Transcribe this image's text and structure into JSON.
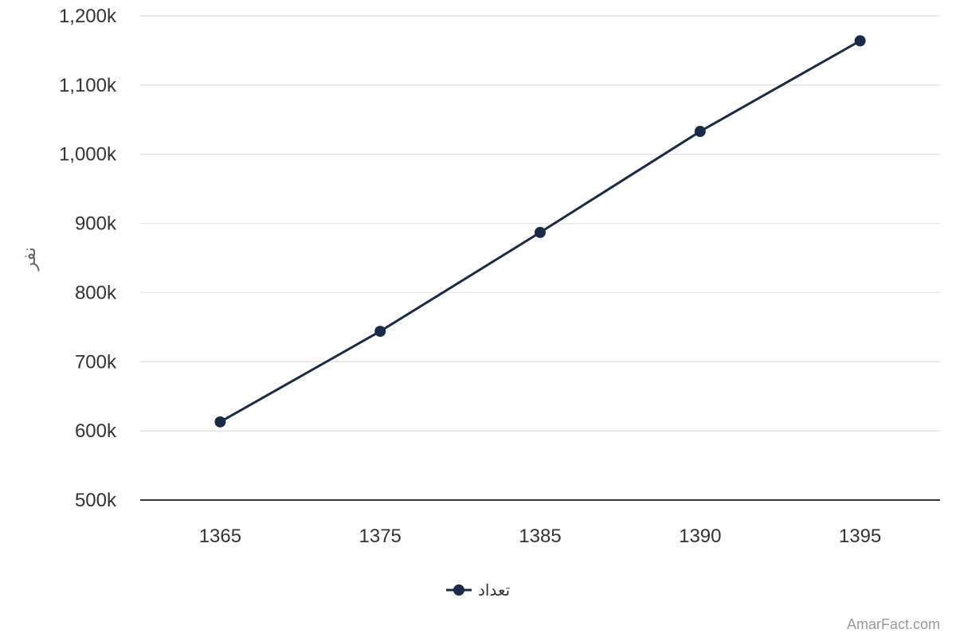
{
  "chart_data": {
    "type": "line",
    "title": "",
    "xlabel": "",
    "ylabel": "نفر",
    "categories": [
      "1365",
      "1375",
      "1385",
      "1390",
      "1395"
    ],
    "series": [
      {
        "name": "تعداد",
        "color": "#1c2a4a",
        "values": [
          613000,
          744000,
          887000,
          1033000,
          1164000
        ]
      }
    ],
    "ylim": [
      500000,
      1200000
    ],
    "yticks": [
      500000,
      600000,
      700000,
      800000,
      900000,
      1000000,
      1100000,
      1200000
    ],
    "ytick_labels": [
      "500k",
      "600k",
      "700k",
      "800k",
      "900k",
      "1,000k",
      "1,100k",
      "1,200k"
    ],
    "grid": true,
    "legend": "bottom-center"
  },
  "credit": "AmarFact.com"
}
